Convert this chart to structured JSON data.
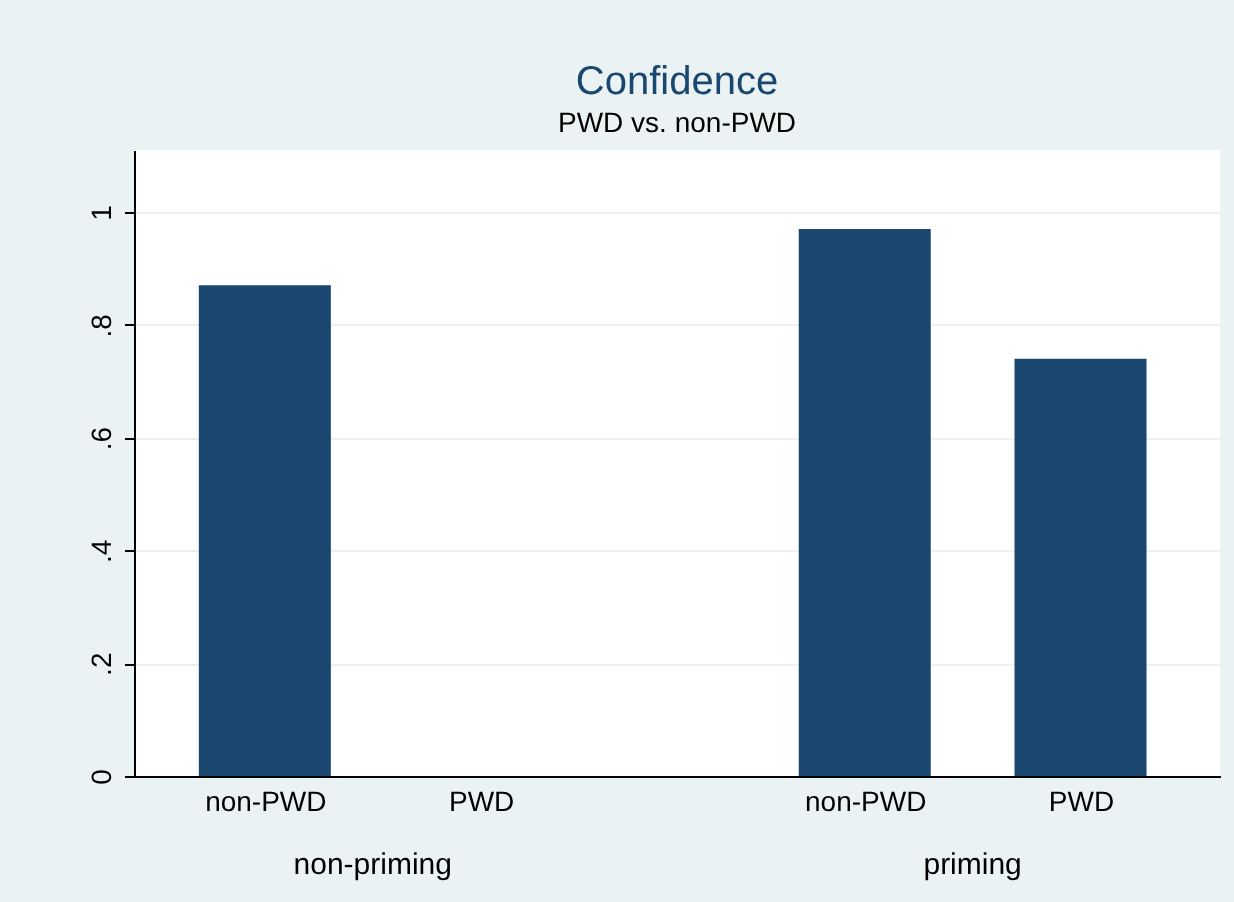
{
  "chart_data": {
    "type": "bar",
    "title": "Confidence",
    "subtitle": "PWD vs. non-PWD",
    "categories": [
      "non-PWD",
      "PWD",
      "non-PWD",
      "PWD"
    ],
    "values": [
      0.87,
      null,
      0.97,
      0.74
    ],
    "color": "#1a476f",
    "ylim": [
      0,
      1.11
    ],
    "yticks": [
      {
        "value": 0,
        "label": "0"
      },
      {
        "value": 0.2,
        "label": ".2"
      },
      {
        "value": 0.4,
        "label": ".4"
      },
      {
        "value": 0.6,
        "label": ".6"
      },
      {
        "value": 0.8,
        "label": ".8"
      },
      {
        "value": 1,
        "label": "1"
      }
    ],
    "grid": "y",
    "annotations": [
      "non-priming",
      "priming"
    ]
  }
}
